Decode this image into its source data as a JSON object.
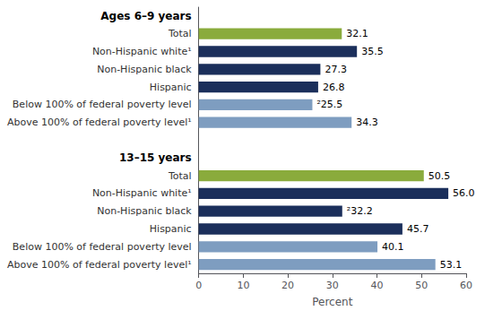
{
  "chart_data": {
    "type": "bar",
    "orientation": "horizontal",
    "xlabel": "Percent",
    "xlim": [
      0,
      60
    ],
    "xticks": [
      0,
      10,
      20,
      30,
      40,
      50,
      60
    ],
    "grid": false,
    "data_labels": true,
    "groups": [
      {
        "title": "Ages 6–9 years",
        "categories": [
          "Total",
          "Non-Hispanic white¹",
          "Non-Hispanic black",
          "Hispanic",
          "Below 100% of federal poverty level",
          "Above 100% of federal poverty level¹"
        ],
        "values": [
          32.1,
          35.5,
          27.3,
          26.8,
          25.5,
          34.3
        ],
        "value_labels": [
          "32.1",
          "35.5",
          "27.3",
          "26.8",
          "²25.5",
          "34.3"
        ],
        "colors": [
          "#8aab3c",
          "#1b2f5b",
          "#1b2f5b",
          "#1b2f5b",
          "#7e9dc0",
          "#7e9dc0"
        ]
      },
      {
        "title": "13–15 years",
        "categories": [
          "Total",
          "Non-Hispanic white¹",
          "Non-Hispanic black",
          "Hispanic",
          "Below 100% of federal poverty level",
          "Above 100% of federal poverty level¹"
        ],
        "values": [
          50.5,
          56.0,
          32.2,
          45.7,
          40.1,
          53.1
        ],
        "value_labels": [
          "50.5",
          "56.0",
          "²32.2",
          "45.7",
          "40.1",
          "53.1"
        ],
        "colors": [
          "#8aab3c",
          "#1b2f5b",
          "#1b2f5b",
          "#1b2f5b",
          "#7e9dc0",
          "#7e9dc0"
        ]
      }
    ]
  }
}
